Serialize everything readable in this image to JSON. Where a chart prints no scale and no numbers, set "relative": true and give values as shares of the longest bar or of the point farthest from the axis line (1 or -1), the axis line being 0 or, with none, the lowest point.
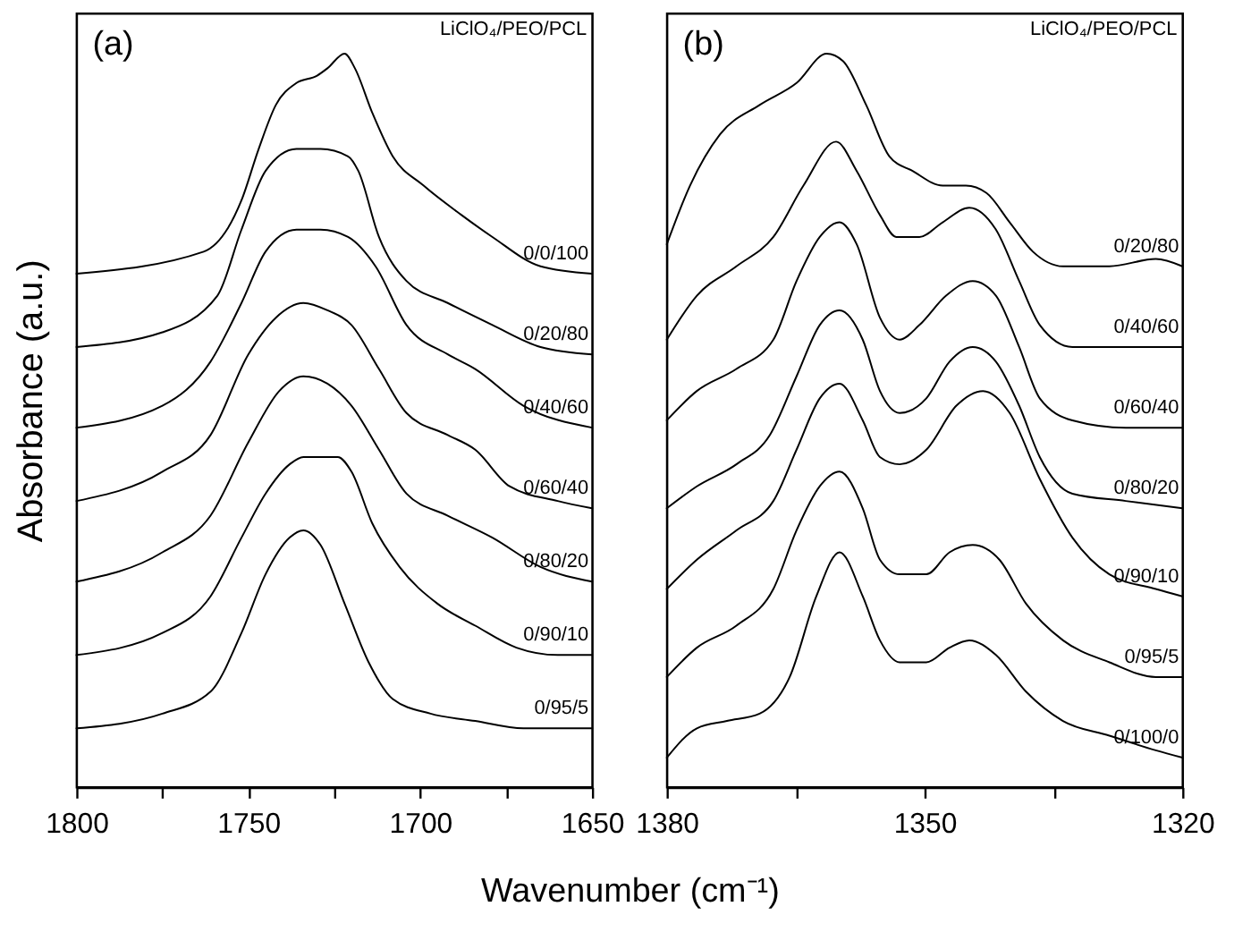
{
  "chart_data": [
    {
      "type": "line",
      "title": "(a)",
      "xlabel": "Wavenumber (cm⁻¹)",
      "ylabel": "Absorbance (a.u.)",
      "relative": true,
      "xlim": [
        1800,
        1650
      ],
      "xticks": [
        1800,
        {
          "value": 1775,
          "label": null
        },
        1750,
        {
          "value": 1725,
          "label": null
        },
        1700,
        {
          "value": 1675,
          "label": null
        },
        1650
      ],
      "annotations": [
        "LiClO₄/PEO/PCL"
      ],
      "series": [
        {
          "name": "0/0/100",
          "color": "#000000",
          "x": [
            1800,
            1763,
            1752,
            1747,
            1742,
            1736,
            1730,
            1727,
            1722,
            1719,
            1714,
            1708,
            1699,
            1688,
            1679,
            1665,
            1650
          ],
          "values": [
            0.7,
            0.73,
            0.8,
            0.87,
            0.93,
            0.96,
            0.97,
            0.98,
            1.0,
            0.98,
            0.92,
            0.86,
            0.82,
            0.78,
            0.75,
            0.71,
            0.7
          ]
        },
        {
          "name": "0/20/80",
          "color": "#000000",
          "x": [
            1800,
            1775,
            1759,
            1752,
            1745,
            1736,
            1729,
            1721,
            1718,
            1712,
            1704,
            1692,
            1679,
            1665,
            1650
          ],
          "values": [
            0.6,
            0.62,
            0.67,
            0.76,
            0.84,
            0.87,
            0.87,
            0.86,
            0.84,
            0.75,
            0.69,
            0.66,
            0.63,
            0.6,
            0.59
          ]
        },
        {
          "name": "0/40/60",
          "color": "#000000",
          "x": [
            1800,
            1775,
            1761,
            1752,
            1745,
            1736,
            1729,
            1721,
            1713,
            1704,
            1692,
            1684,
            1670,
            1650
          ],
          "values": [
            0.49,
            0.52,
            0.58,
            0.66,
            0.73,
            0.76,
            0.76,
            0.75,
            0.71,
            0.63,
            0.59,
            0.57,
            0.52,
            0.49
          ]
        },
        {
          "name": "0/60/40",
          "color": "#000000",
          "x": [
            1800,
            1775,
            1761,
            1750,
            1742,
            1734,
            1727,
            1720,
            1712,
            1704,
            1692,
            1684,
            1674,
            1660,
            1650
          ],
          "values": [
            0.39,
            0.43,
            0.48,
            0.59,
            0.64,
            0.66,
            0.65,
            0.63,
            0.57,
            0.51,
            0.48,
            0.46,
            0.41,
            0.39,
            0.38
          ]
        },
        {
          "name": "0/80/20",
          "color": "#000000",
          "x": [
            1800,
            1775,
            1761,
            1750,
            1741,
            1734,
            1727,
            1720,
            1712,
            1704,
            1692,
            1679,
            1665,
            1650
          ],
          "values": [
            0.28,
            0.32,
            0.37,
            0.47,
            0.54,
            0.56,
            0.55,
            0.52,
            0.46,
            0.4,
            0.37,
            0.34,
            0.3,
            0.28
          ]
        },
        {
          "name": "0/90/10",
          "color": "#000000",
          "x": [
            1800,
            1775,
            1761,
            1752,
            1745,
            1738,
            1734,
            1724,
            1720,
            1714,
            1706,
            1695,
            1684,
            1672,
            1660,
            1650
          ],
          "values": [
            0.18,
            0.21,
            0.26,
            0.34,
            0.4,
            0.44,
            0.45,
            0.45,
            0.43,
            0.36,
            0.3,
            0.25,
            0.22,
            0.19,
            0.18,
            0.18
          ]
        },
        {
          "name": "0/95/5",
          "color": "#000000",
          "x": [
            1800,
            1775,
            1761,
            1752,
            1745,
            1738,
            1734,
            1729,
            1722,
            1715,
            1708,
            1697,
            1684,
            1670,
            1650
          ],
          "values": [
            0.08,
            0.1,
            0.13,
            0.21,
            0.29,
            0.34,
            0.35,
            0.33,
            0.25,
            0.17,
            0.12,
            0.1,
            0.09,
            0.08,
            0.08
          ]
        }
      ]
    },
    {
      "type": "line",
      "title": "(b)",
      "relative": true,
      "xlim": [
        1380,
        1320
      ],
      "xticks": [
        1380,
        {
          "value": 1365,
          "label": null
        },
        1350,
        {
          "value": 1335,
          "label": null
        },
        1320
      ],
      "annotations": [
        "LiClO₄/PEO/PCL"
      ],
      "series": [
        {
          "name": "0/20/80",
          "color": "#000000",
          "x": [
            1380,
            1377.3,
            1373.8,
            1369.2,
            1364.9,
            1361.4,
            1359.5,
            1356.8,
            1354.1,
            1351.4,
            1347.9,
            1345.2,
            1342.8,
            1340.1,
            1337.4,
            1333.9,
            1328.5,
            1323.1,
            1320
          ],
          "values": [
            0.74,
            0.82,
            0.89,
            0.93,
            0.96,
            1.0,
            0.99,
            0.93,
            0.86,
            0.84,
            0.82,
            0.82,
            0.81,
            0.77,
            0.73,
            0.71,
            0.71,
            0.72,
            0.71
          ]
        },
        {
          "name": "0/40/60",
          "color": "#000000",
          "x": [
            1380,
            1376.5,
            1371.9,
            1367.6,
            1364.1,
            1360.3,
            1357.9,
            1355.2,
            1353.3,
            1350.6,
            1347.9,
            1344.8,
            1341.7,
            1339.0,
            1336.6,
            1332.8,
            1326.6,
            1320
          ],
          "values": [
            0.61,
            0.67,
            0.71,
            0.75,
            0.82,
            0.88,
            0.84,
            0.78,
            0.75,
            0.75,
            0.77,
            0.79,
            0.76,
            0.69,
            0.63,
            0.6,
            0.6,
            0.6
          ]
        },
        {
          "name": "0/60/40",
          "color": "#000000",
          "x": [
            1380,
            1376.5,
            1371.9,
            1367.6,
            1364.9,
            1362.2,
            1359.9,
            1357.9,
            1355.2,
            1352.9,
            1350.6,
            1347.5,
            1344.4,
            1341.7,
            1339.0,
            1336.6,
            1332.8,
            1326.6,
            1320
          ],
          "values": [
            0.5,
            0.54,
            0.57,
            0.61,
            0.69,
            0.75,
            0.77,
            0.74,
            0.64,
            0.61,
            0.63,
            0.67,
            0.69,
            0.67,
            0.6,
            0.53,
            0.5,
            0.49,
            0.49
          ]
        },
        {
          "name": "0/80/20",
          "color": "#000000",
          "x": [
            1380,
            1376.5,
            1371.9,
            1368.0,
            1364.9,
            1362.2,
            1359.9,
            1357.2,
            1355.2,
            1352.9,
            1349.8,
            1347.1,
            1344.4,
            1341.7,
            1339.0,
            1336.6,
            1332.8,
            1326.6,
            1320
          ],
          "values": [
            0.38,
            0.41,
            0.44,
            0.48,
            0.56,
            0.63,
            0.65,
            0.61,
            0.54,
            0.51,
            0.53,
            0.58,
            0.6,
            0.58,
            0.52,
            0.45,
            0.4,
            0.39,
            0.38
          ]
        },
        {
          "name": "0/90/10",
          "color": "#000000",
          "x": [
            1380,
            1376.5,
            1371.9,
            1367.6,
            1364.9,
            1362.2,
            1359.9,
            1357.2,
            1355.2,
            1352.9,
            1349.8,
            1346.3,
            1343.2,
            1340.1,
            1336.6,
            1332.8,
            1328.5,
            1323.1,
            1320
          ],
          "values": [
            0.27,
            0.31,
            0.35,
            0.39,
            0.46,
            0.53,
            0.55,
            0.5,
            0.45,
            0.44,
            0.46,
            0.52,
            0.54,
            0.51,
            0.42,
            0.34,
            0.29,
            0.27,
            0.26
          ]
        },
        {
          "name": "0/95/5",
          "color": "#000000",
          "x": [
            1380,
            1376.5,
            1371.9,
            1367.6,
            1364.9,
            1362.2,
            1359.9,
            1357.2,
            1355.2,
            1352.9,
            1349.8,
            1347.1,
            1344.4,
            1341.3,
            1338.2,
            1333.9,
            1328.5,
            1323.1,
            1320
          ],
          "values": [
            0.15,
            0.19,
            0.22,
            0.27,
            0.35,
            0.41,
            0.43,
            0.38,
            0.31,
            0.29,
            0.29,
            0.32,
            0.33,
            0.31,
            0.25,
            0.2,
            0.17,
            0.15,
            0.15
          ]
        },
        {
          "name": "0/100/0",
          "color": "#000000",
          "x": [
            1380,
            1376.5,
            1373.0,
            1369.2,
            1365.7,
            1362.6,
            1359.9,
            1357.2,
            1355.2,
            1352.9,
            1349.8,
            1347.1,
            1344.8,
            1341.7,
            1338.2,
            1333.9,
            1328.5,
            1323.1,
            1320
          ],
          "values": [
            0.04,
            0.08,
            0.09,
            0.1,
            0.15,
            0.26,
            0.32,
            0.26,
            0.2,
            0.17,
            0.17,
            0.19,
            0.2,
            0.18,
            0.13,
            0.09,
            0.07,
            0.05,
            0.04
          ]
        }
      ]
    }
  ]
}
